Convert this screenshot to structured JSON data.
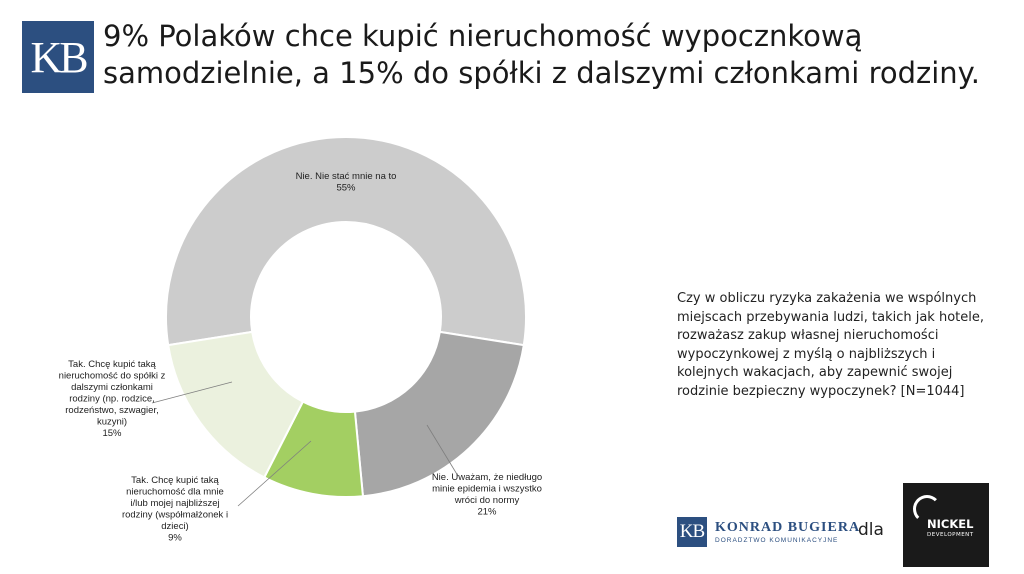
{
  "header": {
    "logo_text": "KB",
    "title_line1": "9% Polaków chce kupić nieruchomość wypocznkową",
    "title_line2": "samodzielnie, a 15% do spółki z dalszymi członkami rodziny."
  },
  "question": "Czy w obliczu ryzyka zakażenia we wspólnych miejscach przebywania ludzi, takich jak hotele, rozważasz zakup własnej nieruchomości wypoczynkowej z myślą o najbliższych i kolejnych wakacjach, aby zapewnić swojej rodzinie bezpieczny wypoczynek? [N=1044]",
  "chart_data": {
    "type": "pie",
    "donut": true,
    "slices": [
      {
        "label_lines": [
          "Nie. Nie stać mnie na to"
        ],
        "value": 55,
        "value_label": "55%",
        "color": "#cccccc"
      },
      {
        "label_lines": [
          "Nie. Uważam, że niedługo",
          "minie epidemia i wszystko",
          "wróci do normy"
        ],
        "value": 21,
        "value_label": "21%",
        "color": "#a6a6a6"
      },
      {
        "label_lines": [
          "Tak. Chcę kupić taką",
          "nieruchomość dla mnie",
          "i/lub mojej najbliższej",
          "rodziny (współmałżonek i",
          "dzieci)"
        ],
        "value": 9,
        "value_label": "9%",
        "color": "#a3cf62"
      },
      {
        "label_lines": [
          "Tak. Chcę kupić taką",
          "nieruchomość do spółki z",
          "dalszymi członkami",
          "rodziny (np. rodzice,",
          "rodzeństwo, szwagier,",
          "kuzyni)"
        ],
        "value": 15,
        "value_label": "15%",
        "color": "#ebf1de"
      }
    ]
  },
  "footer": {
    "kb_logo_text": "KB",
    "kb_name": "KONRAD BUGIERA",
    "kb_sub": "DORADZTWO KOMUNIKACYJNE",
    "dla": "dla",
    "nickel_name": "NICKEL",
    "nickel_sub": "DEVELOPMENT"
  }
}
